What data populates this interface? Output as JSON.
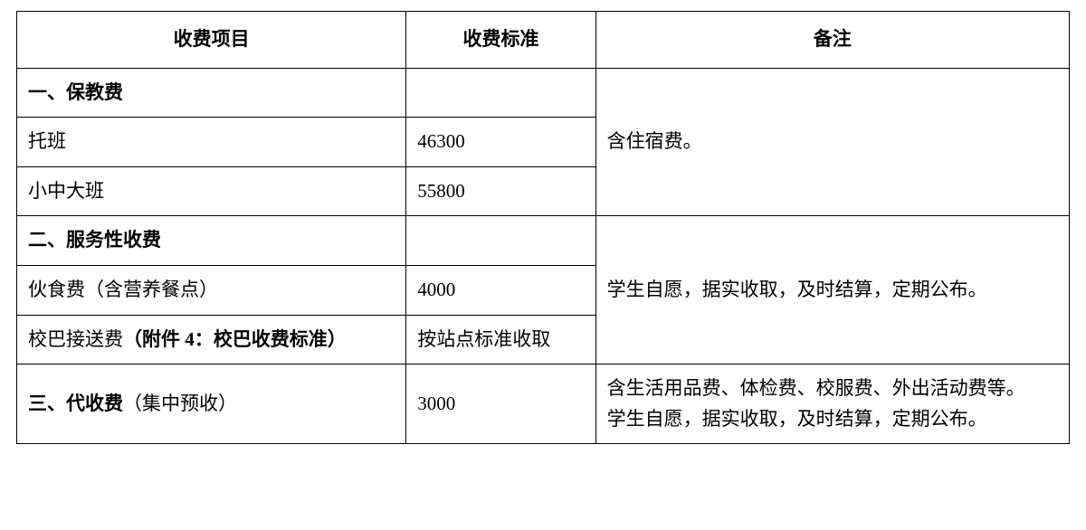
{
  "table": {
    "structure": "table",
    "border_color": "#000000",
    "background_color": "#ffffff",
    "text_color": "#000000",
    "font_size_pt": 16,
    "columns": [
      {
        "key": "item",
        "header": "收费项目",
        "width_pct": 37,
        "align": "center"
      },
      {
        "key": "standard",
        "header": "收费标准",
        "width_pct": 18,
        "align": "center"
      },
      {
        "key": "note",
        "header": "备注",
        "width_pct": 45,
        "align": "center"
      }
    ],
    "sections": [
      {
        "title": "一、保教费",
        "note": "含住宿费。",
        "rows": [
          {
            "item": "托班",
            "standard": "46300"
          },
          {
            "item": "小中大班",
            "standard": "55800"
          }
        ]
      },
      {
        "title": "二、服务性收费",
        "note": "学生自愿，据实收取，及时结算，定期公布。",
        "rows": [
          {
            "item": "伙食费（含营养餐点）",
            "standard": "4000"
          },
          {
            "item_prefix": "校巴接送费",
            "item_bold": "（附件 4：校巴收费标准）",
            "standard": "按站点标准收取"
          }
        ]
      },
      {
        "title_bold": "三、代收费",
        "title_suffix": "（集中预收）",
        "standard": "3000",
        "note": "含生活用品费、体检费、校服费、外出活动费等。\n学生自愿，据实收取，及时结算，定期公布。"
      }
    ]
  }
}
